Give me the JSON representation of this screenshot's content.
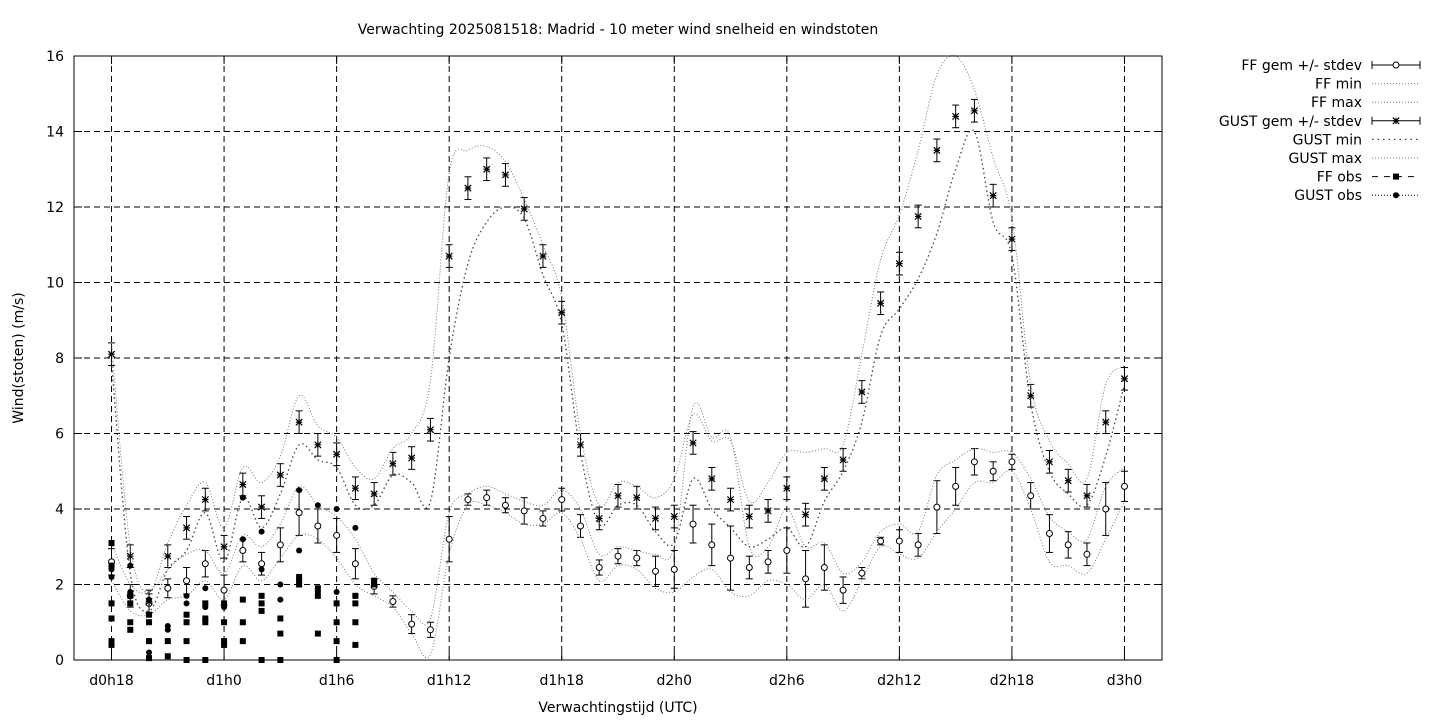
{
  "chart_data": {
    "type": "line",
    "title": "Verwachting 2025081518: Madrid - 10 meter wind snelheid en windstoten",
    "xlabel": "Verwachtingstijd (UTC)",
    "ylabel": "Wind(stoten) (m/s)",
    "ylim": [
      0,
      16
    ],
    "xlim": [
      -2,
      56
    ],
    "grid": true,
    "legend_position": "outside-right",
    "x_ticks": [
      {
        "x": 0,
        "label": "d0h18"
      },
      {
        "x": 6,
        "label": "d1h0"
      },
      {
        "x": 12,
        "label": "d1h6"
      },
      {
        "x": 18,
        "label": "d1h12"
      },
      {
        "x": 24,
        "label": "d1h18"
      },
      {
        "x": 30,
        "label": "d2h0"
      },
      {
        "x": 36,
        "label": "d2h6"
      },
      {
        "x": 42,
        "label": "d2h12"
      },
      {
        "x": 48,
        "label": "d2h18"
      },
      {
        "x": 54,
        "label": "d3h0"
      }
    ],
    "y_ticks": [
      0,
      2,
      4,
      6,
      8,
      10,
      12,
      14,
      16
    ],
    "legend": [
      {
        "label": "FF gem +/- stdev",
        "sample": "errorbar-circle"
      },
      {
        "label": "FF min",
        "sample": "dotted"
      },
      {
        "label": "FF max",
        "sample": "dotted"
      },
      {
        "label": "GUST gem +/- stdev",
        "sample": "errorbar-star"
      },
      {
        "label": "GUST min",
        "sample": "sparse-dotted"
      },
      {
        "label": "GUST max",
        "sample": "dotted"
      },
      {
        "label": "FF obs",
        "sample": "dash-square"
      },
      {
        "label": "GUST obs",
        "sample": "dot-circle"
      }
    ],
    "x": [
      0,
      1,
      2,
      3,
      4,
      5,
      6,
      7,
      8,
      9,
      10,
      11,
      12,
      13,
      14,
      15,
      16,
      17,
      18,
      19,
      20,
      21,
      22,
      23,
      24,
      25,
      26,
      27,
      28,
      29,
      30,
      31,
      32,
      33,
      34,
      35,
      36,
      37,
      38,
      39,
      40,
      41,
      42,
      43,
      44,
      45,
      46,
      47,
      48,
      49,
      50,
      51,
      52,
      53,
      54
    ],
    "series": [
      {
        "name": "FF gem +/- stdev",
        "marker": "open-circle",
        "mean": [
          2.6,
          1.7,
          1.5,
          1.9,
          2.1,
          2.55,
          1.85,
          2.9,
          2.55,
          3.05,
          3.9,
          3.55,
          3.3,
          2.55,
          1.95,
          1.55,
          0.95,
          0.8,
          3.2,
          4.25,
          4.3,
          4.1,
          3.95,
          3.75,
          4.25,
          3.55,
          2.45,
          2.75,
          2.7,
          2.35,
          2.4,
          3.6,
          3.05,
          2.7,
          2.45,
          2.6,
          2.9,
          2.15,
          2.45,
          1.85,
          2.3,
          3.15,
          3.15,
          3.05,
          4.05,
          4.6,
          5.25,
          5.0,
          5.25,
          4.35,
          3.35,
          3.05,
          2.8,
          4.0,
          4.6
        ],
        "stdev": [
          0.35,
          0.3,
          0.25,
          0.25,
          0.35,
          0.35,
          0.4,
          0.3,
          0.3,
          0.45,
          0.6,
          0.45,
          0.45,
          0.4,
          0.2,
          0.15,
          0.25,
          0.2,
          0.6,
          0.15,
          0.2,
          0.2,
          0.35,
          0.2,
          0.3,
          0.3,
          0.2,
          0.2,
          0.2,
          0.4,
          0.5,
          0.5,
          0.55,
          0.85,
          0.3,
          0.3,
          0.6,
          0.75,
          0.6,
          0.35,
          0.15,
          0.1,
          0.3,
          0.3,
          0.7,
          0.5,
          0.35,
          0.25,
          0.2,
          0.35,
          0.5,
          0.35,
          0.3,
          0.7,
          0.4
        ]
      },
      {
        "name": "FF min",
        "values": [
          2.1,
          1.3,
          1.2,
          1.6,
          1.7,
          2.1,
          1.6,
          2.5,
          2.1,
          2.7,
          3.3,
          3.2,
          2.7,
          2.0,
          1.7,
          1.4,
          0.7,
          0.15,
          2.8,
          4.1,
          4.1,
          3.9,
          3.6,
          3.6,
          3.9,
          3.2,
          2.1,
          2.5,
          2.4,
          1.9,
          1.8,
          2.2,
          2.4,
          1.8,
          1.7,
          2.1,
          2.0,
          1.6,
          2.0,
          1.3,
          2.1,
          3.0,
          2.8,
          2.7,
          3.4,
          4.0,
          4.7,
          4.7,
          5.0,
          4.0,
          2.6,
          2.5,
          2.3,
          3.2,
          4.2
        ]
      },
      {
        "name": "FF max",
        "values": [
          3.1,
          2.0,
          1.8,
          2.4,
          2.8,
          2.9,
          2.3,
          3.3,
          3.0,
          3.6,
          4.6,
          4.1,
          3.8,
          3.2,
          2.3,
          1.8,
          1.3,
          1.1,
          3.9,
          4.4,
          4.6,
          4.4,
          4.2,
          4.1,
          4.5,
          4.0,
          2.8,
          3.0,
          2.9,
          2.8,
          3.0,
          6.7,
          5.9,
          5.9,
          3.0,
          3.0,
          4.0,
          3.0,
          3.1,
          2.3,
          2.6,
          3.4,
          3.6,
          3.4,
          4.9,
          5.3,
          5.6,
          5.5,
          5.5,
          4.8,
          3.8,
          3.4,
          3.2,
          4.6,
          5.1
        ]
      },
      {
        "name": "GUST gem +/- stdev",
        "marker": "star",
        "mean": [
          8.1,
          2.75,
          1.55,
          2.75,
          3.5,
          4.25,
          3.0,
          4.65,
          4.05,
          4.9,
          6.3,
          5.7,
          5.45,
          4.55,
          4.4,
          5.2,
          5.35,
          6.1,
          10.7,
          12.5,
          13.0,
          12.85,
          11.95,
          10.7,
          9.2,
          5.7,
          3.75,
          4.35,
          4.3,
          3.75,
          3.8,
          5.75,
          4.8,
          4.25,
          3.8,
          3.95,
          4.55,
          3.85,
          4.8,
          5.3,
          7.1,
          9.45,
          10.5,
          11.75,
          13.5,
          14.4,
          14.55,
          12.3,
          11.15,
          7.0,
          5.25,
          4.75,
          4.35,
          6.3,
          7.45
        ]
      },
      {
        "name": "GUST min",
        "values": [
          7.9,
          2.3,
          1.3,
          2.4,
          2.9,
          3.9,
          2.6,
          4.3,
          3.5,
          4.4,
          5.7,
          5.3,
          5.1,
          4.1,
          4.1,
          4.9,
          4.7,
          4.2,
          8.0,
          10.5,
          11.6,
          12.0,
          11.7,
          10.2,
          8.9,
          5.5,
          3.6,
          4.1,
          4.1,
          3.4,
          3.1,
          4.8,
          4.0,
          3.5,
          3.0,
          3.2,
          3.5,
          3.0,
          4.2,
          5.0,
          6.3,
          8.6,
          9.3,
          10.1,
          11.3,
          13.0,
          14.0,
          11.6,
          10.7,
          6.8,
          5.0,
          4.4,
          4.1,
          5.4,
          7.3
        ]
      },
      {
        "name": "GUST max",
        "values": [
          8.4,
          3.0,
          1.8,
          3.1,
          4.1,
          4.7,
          3.5,
          5.1,
          4.7,
          5.4,
          7.0,
          6.2,
          5.9,
          5.1,
          4.8,
          5.6,
          6.0,
          7.4,
          12.9,
          13.5,
          13.6,
          13.2,
          12.2,
          11.0,
          9.6,
          6.0,
          4.1,
          4.7,
          4.6,
          4.3,
          4.8,
          6.5,
          5.8,
          5.8,
          4.2,
          4.7,
          5.5,
          5.5,
          5.6,
          5.7,
          8.1,
          10.6,
          11.8,
          13.5,
          15.5,
          16.0,
          15.1,
          13.3,
          11.7,
          7.3,
          5.8,
          5.2,
          4.8,
          7.3,
          7.8
        ]
      },
      {
        "name": "FF obs",
        "marker": "filled-square",
        "points": [
          [
            0,
            3.1
          ],
          [
            0,
            2.5
          ],
          [
            0,
            1.5
          ],
          [
            0,
            1.1
          ],
          [
            0,
            0.5
          ],
          [
            0,
            0.4
          ],
          [
            1,
            1.7
          ],
          [
            1,
            1.5
          ],
          [
            1,
            1.0
          ],
          [
            1,
            0.8
          ],
          [
            2,
            1.2
          ],
          [
            2,
            1.0
          ],
          [
            2,
            0.5
          ],
          [
            2,
            0.05
          ],
          [
            3,
            0.5
          ],
          [
            3,
            0.1
          ],
          [
            4,
            1.2
          ],
          [
            4,
            1.0
          ],
          [
            4,
            0.5
          ],
          [
            4,
            0
          ],
          [
            5,
            1.5
          ],
          [
            5,
            1.1
          ],
          [
            5,
            1.0
          ],
          [
            5,
            0
          ],
          [
            6,
            1.5
          ],
          [
            6,
            1.0
          ],
          [
            6,
            0.5
          ],
          [
            6,
            0.4
          ],
          [
            7,
            1.6
          ],
          [
            7,
            1.0
          ],
          [
            7,
            0.5
          ],
          [
            8,
            1.7
          ],
          [
            8,
            1.5
          ],
          [
            8,
            1.3
          ],
          [
            8,
            0
          ],
          [
            9,
            1.1
          ],
          [
            9,
            0.7
          ],
          [
            9,
            0
          ],
          [
            10,
            2.2
          ],
          [
            10,
            2.1
          ],
          [
            10,
            2.0
          ],
          [
            11,
            1.9
          ],
          [
            11,
            1.7
          ],
          [
            11,
            0.7
          ],
          [
            12,
            1.5
          ],
          [
            12,
            1.0
          ],
          [
            12,
            0.5
          ],
          [
            12,
            0
          ],
          [
            13,
            1.7
          ],
          [
            13,
            1.5
          ],
          [
            13,
            1.0
          ],
          [
            13,
            0.4
          ],
          [
            14,
            2.1
          ],
          [
            14,
            2.0
          ]
        ]
      },
      {
        "name": "GUST obs",
        "marker": "filled-circle",
        "points": [
          [
            0,
            2.4
          ],
          [
            0,
            2.2
          ],
          [
            1,
            2.5
          ],
          [
            1,
            1.8
          ],
          [
            2,
            1.6
          ],
          [
            2,
            0.5
          ],
          [
            2,
            0.2
          ],
          [
            3,
            0.9
          ],
          [
            3,
            0.8
          ],
          [
            4,
            1.7
          ],
          [
            4,
            1.5
          ],
          [
            5,
            1.9
          ],
          [
            5,
            1.4
          ],
          [
            6,
            1.4
          ],
          [
            7,
            4.3
          ],
          [
            7,
            3.2
          ],
          [
            8,
            3.4
          ],
          [
            8,
            2.4
          ],
          [
            9,
            2.0
          ],
          [
            9,
            1.6
          ],
          [
            10,
            4.5
          ],
          [
            10,
            2.9
          ],
          [
            11,
            4.1
          ],
          [
            11,
            1.8
          ],
          [
            12,
            4.0
          ],
          [
            12,
            1.8
          ],
          [
            13,
            3.5
          ],
          [
            13,
            1.7
          ],
          [
            14,
            2.1
          ]
        ]
      }
    ]
  }
}
